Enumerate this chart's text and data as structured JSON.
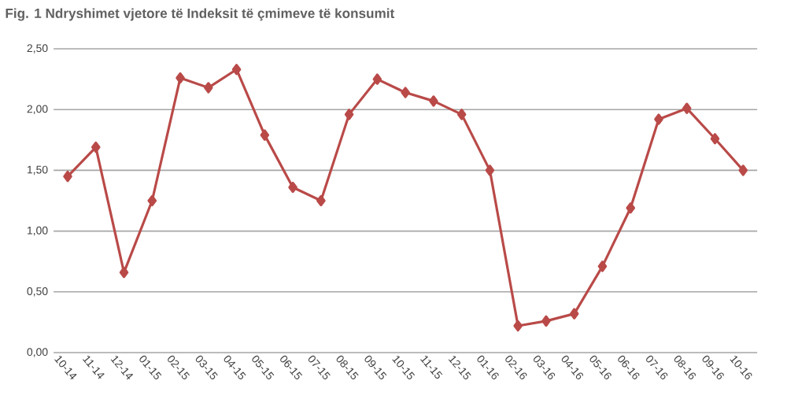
{
  "chart_data": {
    "type": "line",
    "title": "Fig. 1 Ndryshimet vjetore të Indeksit të çmimeve të konsumit",
    "categories": [
      "10-14",
      "11-14",
      "12-14",
      "01-15",
      "02-15",
      "03-15",
      "04-15",
      "05-15",
      "06-15",
      "07-15",
      "08-15",
      "09-15",
      "10-15",
      "11-15",
      "12-15",
      "01-16",
      "02-16",
      "03-16",
      "04-16",
      "05-16",
      "06-16",
      "07-16",
      "08-16",
      "09-16",
      "10-16"
    ],
    "values": [
      1.45,
      1.69,
      0.66,
      1.25,
      2.26,
      2.18,
      2.33,
      1.79,
      1.36,
      1.25,
      1.96,
      2.25,
      2.14,
      2.07,
      1.96,
      1.5,
      0.22,
      0.26,
      0.32,
      0.71,
      1.19,
      1.92,
      2.01,
      1.76,
      1.5
    ],
    "color": "#b94a48",
    "marker": "diamond",
    "line_style": "solid",
    "ylim": [
      0,
      2.5
    ],
    "yticks": [
      {
        "value": 0,
        "label": "0,00"
      },
      {
        "value": 0.5,
        "label": "0,50"
      },
      {
        "value": 1,
        "label": "1,00"
      },
      {
        "value": 1.5,
        "label": "1,50"
      },
      {
        "value": 2,
        "label": "2,00"
      },
      {
        "value": 2.5,
        "label": "2,50"
      }
    ],
    "grid": "y"
  }
}
